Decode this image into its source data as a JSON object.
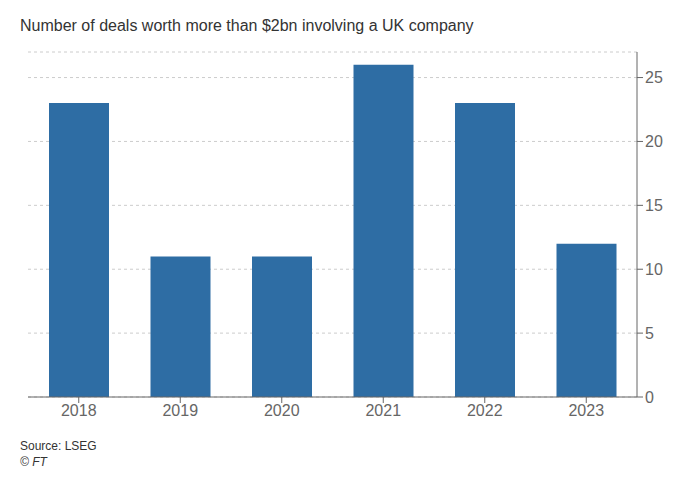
{
  "chart_data": {
    "type": "bar",
    "title": "Number of deals worth more than $2bn involving a UK company",
    "categories": [
      "2018",
      "2019",
      "2020",
      "2021",
      "2022",
      "2023"
    ],
    "values": [
      23,
      11,
      11,
      26,
      23,
      12
    ],
    "color": "#2e6da4",
    "ylim": [
      0,
      27
    ],
    "yticks": [
      0,
      5,
      10,
      15,
      20,
      25
    ],
    "grid": true,
    "annotations": [
      "Source: LSEG",
      "© FT"
    ]
  }
}
